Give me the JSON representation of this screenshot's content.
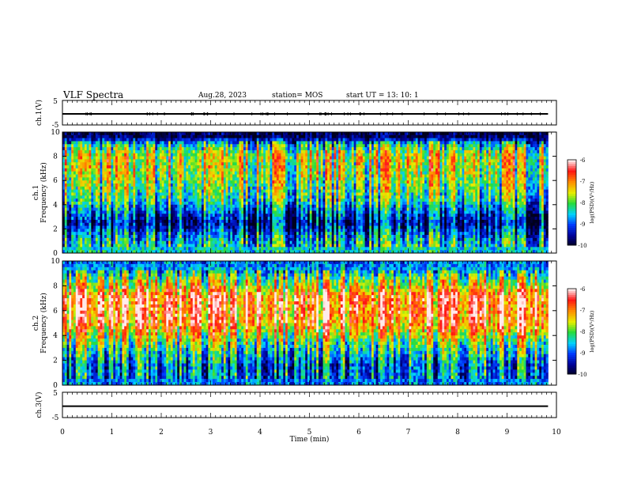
{
  "header": {
    "title": "VLF Spectra",
    "date": "Aug.28, 2023",
    "station": "station= MOS",
    "start": "start  UT =   13: 10: 1"
  },
  "chart_data": [
    {
      "type": "line",
      "panel": "ch.1 waveform",
      "ylabel": "ch.1(V)",
      "ylim": [
        -5,
        5
      ],
      "yticks": [
        "5",
        "-5"
      ],
      "x": [
        0,
        9.83
      ],
      "series": [
        {
          "values": [
            -0.5,
            -0.5
          ]
        }
      ]
    },
    {
      "type": "heatmap",
      "panel": "ch.1 spectrogram",
      "ylabel": "ch.1\nFrequency (kHz)",
      "ylim": [
        0,
        10
      ],
      "yticks": [
        "0",
        "2",
        "4",
        "6",
        "8",
        "10"
      ],
      "xlim": [
        0,
        10
      ],
      "data_extent_min": 9.83,
      "colorbar": {
        "label": "log(PSD)(V²/Hz)",
        "range": [
          -10,
          -6
        ],
        "ticks": [
          "-6",
          "-7",
          "-8",
          "-9",
          "-10"
        ]
      },
      "intensity_profile": [
        {
          "f": 0.25,
          "v": 0.4
        },
        {
          "f": 1.0,
          "v": 0.38
        },
        {
          "f": 2.5,
          "v": 0.12
        },
        {
          "f": 4.5,
          "v": 0.45
        },
        {
          "f": 6.5,
          "v": 0.58
        },
        {
          "f": 8.0,
          "v": 0.62
        },
        {
          "f": 9.0,
          "v": 0.4
        },
        {
          "f": 9.6,
          "v": 0.05
        }
      ]
    },
    {
      "type": "heatmap",
      "panel": "ch.2 spectrogram",
      "ylabel": "ch.2\nFrequency (kHz)",
      "ylim": [
        0,
        10
      ],
      "yticks": [
        "0",
        "2",
        "4",
        "6",
        "8",
        "10"
      ],
      "xlim": [
        0,
        10
      ],
      "data_extent_min": 9.83,
      "colorbar": {
        "label": "log(PSD)(V²/Hz)",
        "range": [
          -10,
          -6
        ],
        "ticks": [
          "-6",
          "-7",
          "-8",
          "-9",
          "-10"
        ]
      },
      "intensity_profile": [
        {
          "f": 0.25,
          "v": 0.3
        },
        {
          "f": 1.5,
          "v": 0.28
        },
        {
          "f": 3.0,
          "v": 0.45
        },
        {
          "f": 5.0,
          "v": 0.8
        },
        {
          "f": 7.0,
          "v": 0.85
        },
        {
          "f": 8.5,
          "v": 0.55
        },
        {
          "f": 9.5,
          "v": 0.3
        }
      ]
    },
    {
      "type": "line",
      "panel": "ch.3 waveform",
      "ylabel": "ch.3(V)",
      "ylim": [
        -5,
        5
      ],
      "yticks": [
        "5",
        "-5"
      ],
      "x": [
        0,
        9.83
      ],
      "series": [
        {
          "values": [
            -0.5,
            -0.5
          ]
        }
      ]
    }
  ],
  "xaxis": {
    "label": "Time (min)",
    "ticks": [
      "0",
      "1",
      "2",
      "3",
      "4",
      "5",
      "6",
      "7",
      "8",
      "9",
      "10"
    ]
  }
}
